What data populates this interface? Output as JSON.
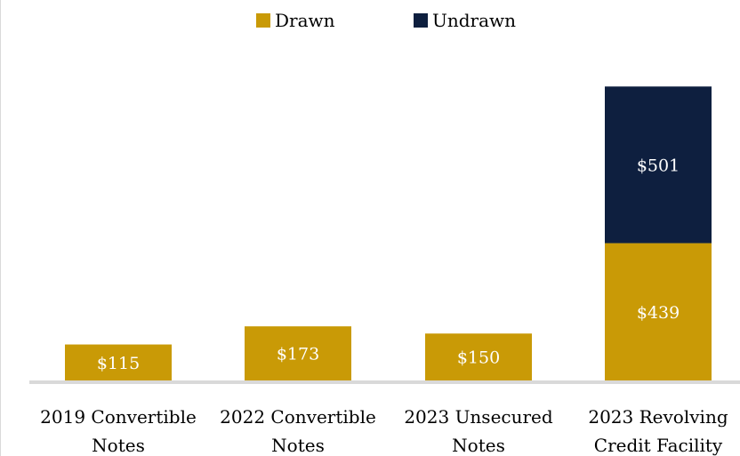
{
  "chart_data": {
    "type": "bar",
    "stacked": true,
    "categories": [
      [
        "2019 Convertible",
        "Notes"
      ],
      [
        "2022 Convertible",
        "Notes"
      ],
      [
        "2023 Unsecured",
        "Notes"
      ],
      [
        "2023 Revolving",
        "Credit Facility"
      ]
    ],
    "series": [
      {
        "name": "Drawn",
        "color": "#c99a06",
        "values": [
          115,
          173,
          150,
          439
        ],
        "labels": [
          "$115",
          "$173",
          "$150",
          "$439"
        ]
      },
      {
        "name": "Undrawn",
        "color": "#0e1f3f",
        "values": [
          0,
          0,
          0,
          501
        ],
        "labels": [
          "",
          "",
          "",
          "$501"
        ]
      }
    ],
    "ylim": [
      0,
      1000
    ],
    "grid": false,
    "legend_position": "top-center",
    "axis_color": "#d9d9d9"
  }
}
